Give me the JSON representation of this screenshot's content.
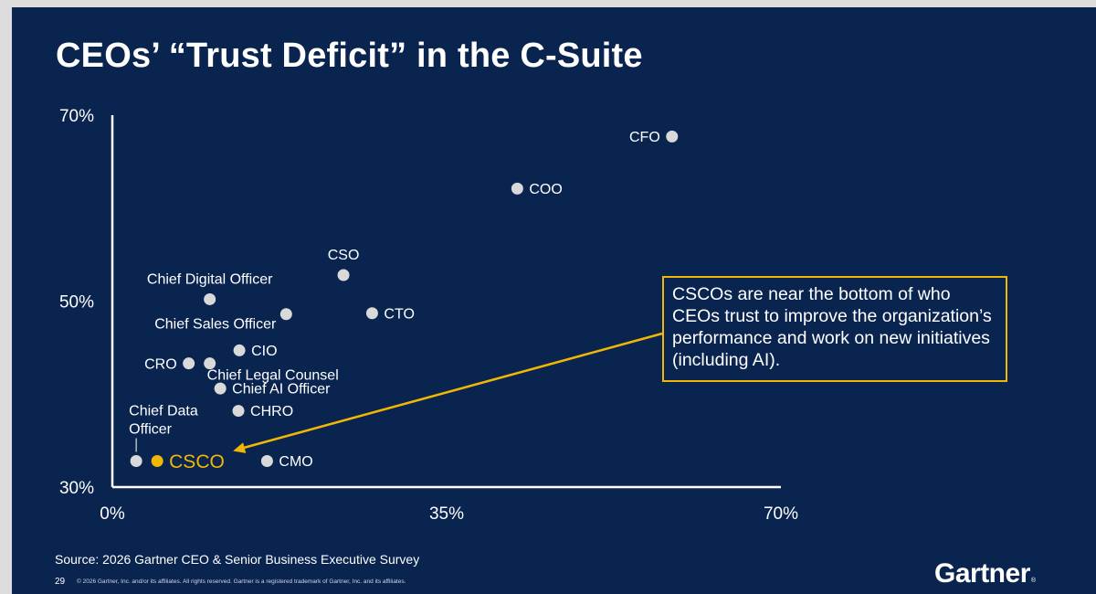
{
  "slide": {
    "title": "CEOs’ “Trust Deficit” in the C-Suite",
    "callout": "CSCOs are near the bottom of who CEOs trust to improve the organization’s performance and work on new initiatives (including AI).",
    "source": "Source: 2026 Gartner CEO & Senior Business Executive Survey",
    "page_number": "29",
    "copyright": "© 2026 Gartner, Inc. and/or its affiliates. All rights reserved. Gartner is a registered trademark of Gartner, Inc. and its affiliates.",
    "logo": "Gartner",
    "logo_mark": "®"
  },
  "colors": {
    "background": "#0a2450",
    "point": "#d9d9d9",
    "highlight": "#f2b705",
    "text": "#ffffff"
  },
  "chart_data": {
    "type": "scatter",
    "title": "",
    "xlabel": "",
    "ylabel": "",
    "xlim": [
      0,
      70
    ],
    "ylim": [
      30,
      70
    ],
    "x_ticks": [
      {
        "value": 0,
        "label": "0%"
      },
      {
        "value": 35,
        "label": "35%"
      },
      {
        "value": 70,
        "label": "70%"
      }
    ],
    "y_ticks": [
      {
        "value": 30,
        "label": "30%"
      },
      {
        "value": 50,
        "label": "50%"
      },
      {
        "value": 70,
        "label": "70%"
      }
    ],
    "grid": false,
    "legend": "none",
    "points": [
      {
        "name": "CFO",
        "x": 58.6,
        "y": 67.7,
        "label_pos": "left"
      },
      {
        "name": "COO",
        "x": 42.4,
        "y": 62.1,
        "label_pos": "right"
      },
      {
        "name": "CSO",
        "x": 24.2,
        "y": 52.8,
        "label_pos": "above"
      },
      {
        "name": "Chief Digital Officer",
        "x": 10.2,
        "y": 50.2,
        "label_pos": "above"
      },
      {
        "name": "Chief Sales Officer",
        "x": 18.2,
        "y": 48.6,
        "label_pos": "below-left"
      },
      {
        "name": "CTO",
        "x": 27.2,
        "y": 48.7,
        "label_pos": "right"
      },
      {
        "name": "CIO",
        "x": 13.3,
        "y": 44.7,
        "label_pos": "right"
      },
      {
        "name": "CRO",
        "x": 8.0,
        "y": 43.3,
        "label_pos": "left"
      },
      {
        "name": "Chief Legal Counsel",
        "x": 10.2,
        "y": 43.3,
        "label_pos": "below-right"
      },
      {
        "name": "Chief AI Officer",
        "x": 11.3,
        "y": 40.6,
        "label_pos": "right"
      },
      {
        "name": "CHRO",
        "x": 13.2,
        "y": 38.2,
        "label_pos": "right"
      },
      {
        "name": "Chief Data Officer",
        "x": 2.5,
        "y": 32.8,
        "label_pos": "above"
      },
      {
        "name": "CSCO",
        "x": 4.7,
        "y": 32.8,
        "label_pos": "right",
        "highlight": true
      },
      {
        "name": "CMO",
        "x": 16.2,
        "y": 32.8,
        "label_pos": "right"
      }
    ]
  }
}
